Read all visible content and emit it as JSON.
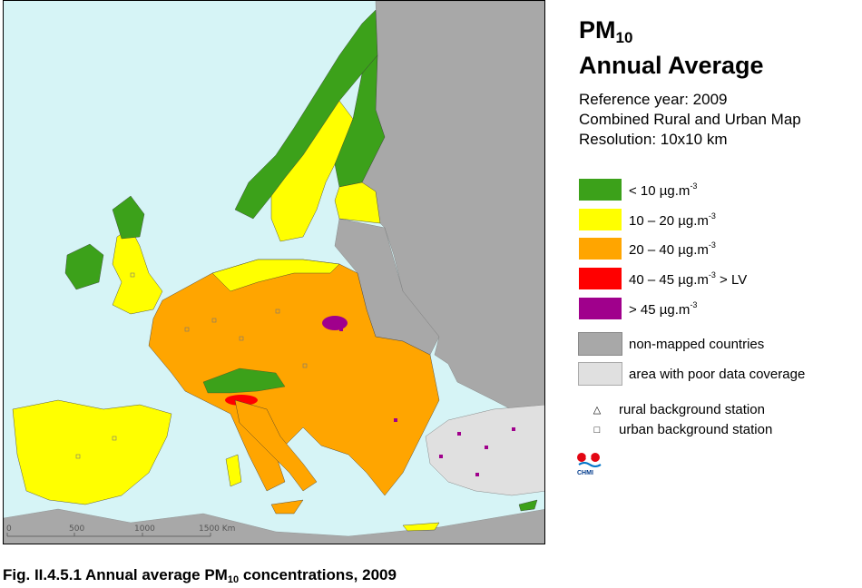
{
  "map": {
    "scale_labels": [
      "0",
      "500",
      "1000",
      "1500 Km"
    ]
  },
  "legend": {
    "title_main": "PM",
    "title_sub": "10",
    "title_line2": "Annual Average",
    "reference_year": "Reference year: 2009",
    "map_type": "Combined Rural and Urban Map",
    "resolution": "Resolution: 10x10 km",
    "classes": [
      {
        "label_pre": "  <  10  µg.m",
        "sup": "-3",
        "label_post": "",
        "color": "#3ca11a"
      },
      {
        "label_pre": "10 – 20  µg.m",
        "sup": "-3",
        "label_post": "",
        "color": "#ffff00"
      },
      {
        "label_pre": "20 – 40  µg.m",
        "sup": "-3",
        "label_post": "",
        "color": "#ffa500"
      },
      {
        "label_pre": "40 – 45  µg.m",
        "sup": "-3",
        "label_post": " > LV",
        "color": "#ff0000"
      },
      {
        "label_pre": "  >  45  µg.m",
        "sup": "-3",
        "label_post": "",
        "color": "#a0008c"
      },
      {
        "label_pre": "non-mapped countries",
        "sup": "",
        "label_post": "",
        "color": "#a8a8a8"
      },
      {
        "label_pre": "area with poor data coverage",
        "sup": "",
        "label_post": "",
        "color": "#e0e0e0"
      }
    ],
    "symbols": [
      {
        "glyph": "△",
        "label": "rural background station"
      },
      {
        "glyph": "□",
        "label": "urban background station"
      }
    ],
    "logo_text": "CHMI"
  },
  "caption": {
    "pre": "Fig. II.4.5.1  Annual average PM",
    "sub": "10",
    "post": " concentrations, 2009"
  },
  "colors": {
    "sea": "#d6f4f6",
    "grey": "#a8a8a8",
    "poor": "#e0e0e0"
  }
}
